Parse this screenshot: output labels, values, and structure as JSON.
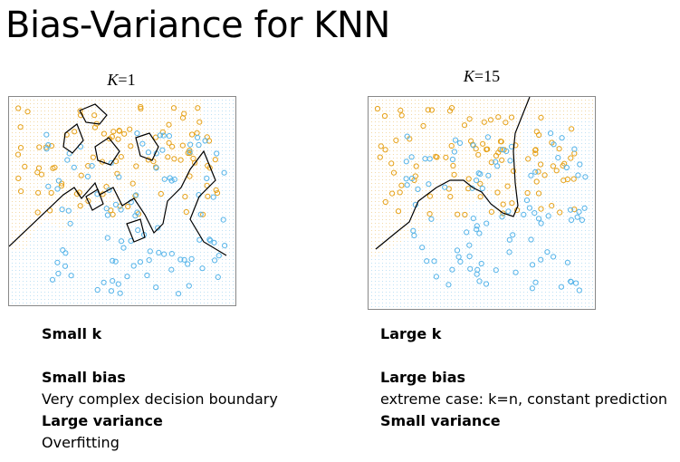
{
  "slide": {
    "title": "Bias-Variance for KNN"
  },
  "left_panel": {
    "k_label": "K",
    "k_value": "=1",
    "heading": "Small k",
    "line1_bold": "Small bias",
    "line2": "Very complex decision boundary",
    "line3_bold": "Large variance",
    "line4": "Overfitting"
  },
  "right_panel": {
    "k_label": "K",
    "k_value": "=15",
    "heading": "Large k",
    "line1_bold": "Large bias",
    "line2": "extreme case: k=n, constant prediction",
    "line3_bold": "Small variance"
  },
  "colors": {
    "orange": "#e6a21a",
    "blue": "#56b4e9",
    "orange_bg": "#f3d9a6",
    "blue_bg": "#bfe1f5",
    "boundary": "#000000"
  }
}
